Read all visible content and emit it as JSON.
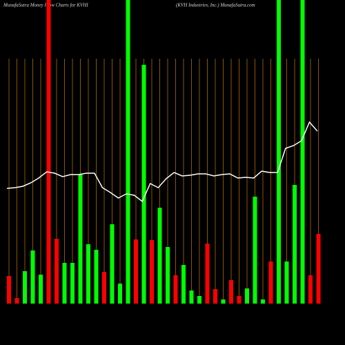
{
  "chart_data": {
    "type": "bar",
    "title": "MunafaSutra  Money Flow  Charts for KVHI",
    "subtitle": "(KVH Industries,  Inc.) MunafaSutra.com",
    "categories": [
      null,
      null,
      null,
      null,
      null,
      null,
      null,
      null,
      null,
      null,
      null,
      null,
      null,
      null,
      null,
      null,
      null,
      null,
      null,
      null,
      null,
      null,
      null,
      null,
      null,
      null,
      null,
      null,
      null,
      null,
      null,
      null,
      null,
      null,
      null,
      null,
      null,
      null,
      null,
      null
    ],
    "values": [
      40,
      8,
      47,
      77,
      42,
      440,
      94,
      59,
      59,
      187,
      86,
      78,
      46,
      115,
      29,
      440,
      93,
      346,
      92,
      139,
      82,
      41,
      56,
      19,
      11,
      87,
      21,
      6,
      34,
      11,
      22,
      155,
      6,
      61,
      440,
      61,
      172,
      440,
      41,
      101
    ],
    "bar_colors": [
      "#ff0000",
      "#ff0000",
      "#00ff00",
      "#00ff00",
      "#00ff00",
      "#ff0000",
      "#ff0000",
      "#00ff00",
      "#00ff00",
      "#00ff00",
      "#00ff00",
      "#00ff00",
      "#ff0000",
      "#00ff00",
      "#00ff00",
      "#00ff00",
      "#ff0000",
      "#00ff00",
      "#ff0000",
      "#00ff00",
      "#00ff00",
      "#ff0000",
      "#00ff00",
      "#00ff00",
      "#00ff00",
      "#ff0000",
      "#ff0000",
      "#00ff00",
      "#ff0000",
      "#ff0000",
      "#00ff00",
      "#00ff00",
      "#00ff00",
      "#ff0000",
      "#00ff00",
      "#00ff00",
      "#00ff00",
      "#00ff00",
      "#ff0000",
      "#ff0000"
    ],
    "line": {
      "color": "#ffffff",
      "values": [
        167,
        168,
        170,
        175,
        182,
        191,
        189,
        184,
        187,
        187,
        189,
        189,
        168,
        161,
        153,
        159,
        157,
        148,
        174,
        168,
        181,
        190,
        185,
        186,
        188,
        188,
        185,
        187,
        188,
        182,
        183,
        182,
        192,
        190,
        190,
        225,
        229,
        236,
        263,
        250
      ]
    },
    "ylim": [
      0,
      440
    ],
    "grid": true,
    "grid_color": "#b36b00",
    "background": "#000000"
  }
}
